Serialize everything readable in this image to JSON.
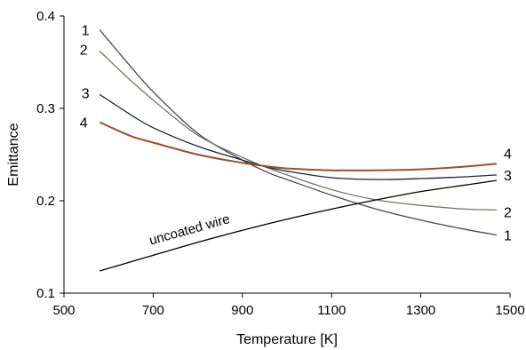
{
  "chart_data": {
    "type": "line",
    "title": "",
    "xlabel": "Temperature [K]",
    "ylabel": "Emittance",
    "xlim": [
      500,
      1500
    ],
    "ylim": [
      0.1,
      0.4
    ],
    "x_ticks": [
      500,
      700,
      900,
      1100,
      1300,
      1500
    ],
    "y_ticks": [
      0.1,
      0.2,
      0.3,
      0.4
    ],
    "x_tick_labels": [
      "500",
      "700",
      "900",
      "1100",
      "1300",
      "1500"
    ],
    "y_tick_labels": [
      "0.1",
      "0.2",
      "0.3",
      "0.4"
    ],
    "grid": false,
    "legend": "none",
    "series": [
      {
        "name": "1",
        "color": "#5a3f4b",
        "x": [
          580,
          650,
          700,
          800,
          900,
          960,
          1000,
          1100,
          1200,
          1300,
          1400,
          1470
        ],
        "y": [
          0.385,
          0.345,
          0.318,
          0.273,
          0.244,
          0.23,
          0.223,
          0.206,
          0.191,
          0.179,
          0.169,
          0.163
        ]
      },
      {
        "name": "2",
        "color": "#6e7767",
        "x": [
          580,
          650,
          700,
          800,
          900,
          960,
          1000,
          1100,
          1200,
          1300,
          1400,
          1470
        ],
        "y": [
          0.362,
          0.33,
          0.309,
          0.271,
          0.247,
          0.235,
          0.228,
          0.212,
          0.201,
          0.195,
          0.191,
          0.19
        ]
      },
      {
        "name": "3",
        "color": "#1c2433",
        "x": [
          580,
          650,
          700,
          800,
          900,
          960,
          1000,
          1100,
          1200,
          1300,
          1400,
          1470
        ],
        "y": [
          0.315,
          0.293,
          0.279,
          0.259,
          0.244,
          0.236,
          0.232,
          0.225,
          0.223,
          0.224,
          0.226,
          0.228
        ]
      },
      {
        "name": "4",
        "color": "#9b4f2a",
        "x": [
          580,
          650,
          700,
          800,
          900,
          960,
          1000,
          1100,
          1200,
          1300,
          1400,
          1470
        ],
        "y": [
          0.285,
          0.27,
          0.263,
          0.25,
          0.241,
          0.237,
          0.235,
          0.233,
          0.233,
          0.234,
          0.237,
          0.24
        ]
      },
      {
        "name": "uncoated wire",
        "color": "#000000",
        "x": [
          580,
          700,
          800,
          900,
          1000,
          1100,
          1200,
          1300,
          1400,
          1470
        ],
        "y": [
          0.124,
          0.141,
          0.155,
          0.168,
          0.18,
          0.191,
          0.201,
          0.21,
          0.217,
          0.222
        ]
      }
    ],
    "labels": {
      "left": [
        "1",
        "2",
        "3",
        "4"
      ],
      "right": [
        "4",
        "3",
        "2",
        "1"
      ],
      "uncoated": "uncoated wire"
    }
  }
}
